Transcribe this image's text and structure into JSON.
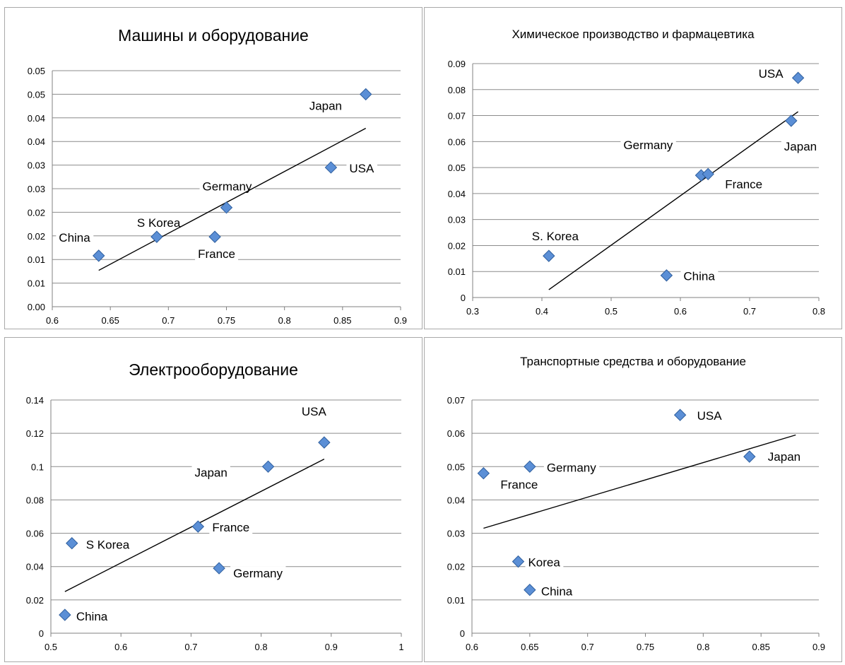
{
  "chart_data": [
    {
      "type": "scatter",
      "title": "Машины и оборудование",
      "xlim": [
        0.6,
        0.9
      ],
      "x_ticks": [
        "0.6",
        "0.65",
        "0.7",
        "0.75",
        "0.8",
        "0.85",
        "0.9"
      ],
      "ylim": [
        0,
        0.05
      ],
      "y_ticks": [
        "0.00",
        "0.01",
        "0.01",
        "0.02",
        "0.02",
        "0.03",
        "0.03",
        "0.04",
        "0.04",
        "0.05",
        "0.05"
      ],
      "grid": true,
      "trendline": {
        "x": [
          0.64,
          0.87
        ],
        "y": [
          0.0077,
          0.0378
        ]
      },
      "points": [
        {
          "label": "China",
          "x": 0.64,
          "y": 0.0108
        },
        {
          "label": "S Korea",
          "x": 0.69,
          "y": 0.0148
        },
        {
          "label": "France",
          "x": 0.74,
          "y": 0.0148
        },
        {
          "label": "Germany",
          "x": 0.75,
          "y": 0.021
        },
        {
          "label": "USA",
          "x": 0.84,
          "y": 0.0295
        },
        {
          "label": "Japan",
          "x": 0.87,
          "y": 0.045
        }
      ]
    },
    {
      "type": "scatter",
      "title": "Химическое производство и фармацевтика",
      "xlim": [
        0.3,
        0.8
      ],
      "x_ticks": [
        "0.3",
        "0.4",
        "0.5",
        "0.6",
        "0.7",
        "0.8"
      ],
      "ylim": [
        0,
        0.09
      ],
      "y_ticks": [
        "0",
        "0.01",
        "0.02",
        "0.03",
        "0.04",
        "0.05",
        "0.06",
        "0.07",
        "0.08",
        "0.09"
      ],
      "grid": true,
      "trendline": {
        "x": [
          0.41,
          0.77
        ],
        "y": [
          0.003,
          0.0715
        ]
      },
      "points": [
        {
          "label": "S. Korea",
          "x": 0.41,
          "y": 0.016
        },
        {
          "label": "China",
          "x": 0.58,
          "y": 0.0085
        },
        {
          "label": "Germany",
          "x": 0.63,
          "y": 0.047
        },
        {
          "label": "France",
          "x": 0.64,
          "y": 0.0475
        },
        {
          "label": "Japan",
          "x": 0.76,
          "y": 0.068
        },
        {
          "label": "USA",
          "x": 0.77,
          "y": 0.0845
        }
      ]
    },
    {
      "type": "scatter",
      "title": "Электрооборудование",
      "xlim": [
        0.5,
        1
      ],
      "x_ticks": [
        "0.5",
        "0.6",
        "0.7",
        "0.8",
        "0.9",
        "1"
      ],
      "ylim": [
        0,
        0.14
      ],
      "y_ticks": [
        "0",
        "0.02",
        "0.04",
        "0.06",
        "0.08",
        "0.1",
        "0.12",
        "0.14"
      ],
      "grid": true,
      "trendline": {
        "x": [
          0.52,
          0.89
        ],
        "y": [
          0.025,
          0.1045
        ]
      },
      "points": [
        {
          "label": "China",
          "x": 0.52,
          "y": 0.011
        },
        {
          "label": "S Korea",
          "x": 0.53,
          "y": 0.054
        },
        {
          "label": "France",
          "x": 0.71,
          "y": 0.064
        },
        {
          "label": "Germany",
          "x": 0.74,
          "y": 0.039
        },
        {
          "label": "Japan",
          "x": 0.81,
          "y": 0.1
        },
        {
          "label": "USA",
          "x": 0.89,
          "y": 0.1145
        }
      ]
    },
    {
      "type": "scatter",
      "title": "Транспортные средства и оборудование",
      "xlim": [
        0.6,
        0.9
      ],
      "x_ticks": [
        "0.6",
        "0.65",
        "0.7",
        "0.75",
        "0.8",
        "0.85",
        "0.9"
      ],
      "ylim": [
        0,
        0.07
      ],
      "y_ticks": [
        "0",
        "0.01",
        "0.02",
        "0.03",
        "0.04",
        "0.05",
        "0.06",
        "0.07"
      ],
      "grid": true,
      "trendline": {
        "x": [
          0.61,
          0.88
        ],
        "y": [
          0.0315,
          0.0595
        ]
      },
      "points": [
        {
          "label": "France",
          "x": 0.61,
          "y": 0.048
        },
        {
          "label": "Korea",
          "x": 0.64,
          "y": 0.0215
        },
        {
          "label": "Germany",
          "x": 0.65,
          "y": 0.05
        },
        {
          "label": "China",
          "x": 0.65,
          "y": 0.013
        },
        {
          "label": "USA",
          "x": 0.78,
          "y": 0.0655
        },
        {
          "label": "Japan",
          "x": 0.84,
          "y": 0.053
        }
      ]
    }
  ],
  "colors": {
    "marker": "#5b8fd6",
    "marker_border": "#2f5f9e",
    "grid": "#8c8c8c",
    "axis": "#808080",
    "trend": "#000000"
  }
}
